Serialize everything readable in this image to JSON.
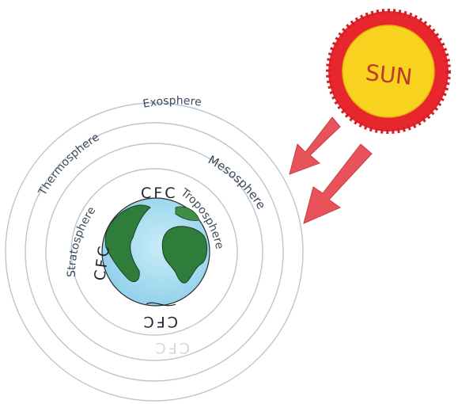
{
  "diagram": {
    "sun": {
      "label": "SUN",
      "color_outer": "#e8262e",
      "color_inner": "#f7d21f"
    },
    "layers": {
      "exosphere": "Exosphere",
      "thermosphere": "Thermosphere",
      "mesosphere": "Mesosphere",
      "stratosphere": "Stratosphere",
      "troposphere": "Troposphere"
    },
    "cfc_labels": {
      "top": "CFC",
      "left": "CFC",
      "bottom": "CFC",
      "faded": "CFC"
    },
    "colors": {
      "ocean": "#a9dcf0",
      "land": "#2f7d3a",
      "arrow": "#e8525a",
      "rings": "#b9c6d2"
    }
  }
}
